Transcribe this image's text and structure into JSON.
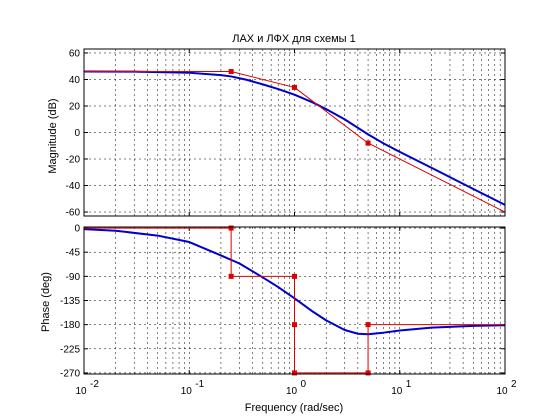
{
  "chart_data": {
    "type": "line",
    "title": "ЛАХ и ЛФХ для схемы 1",
    "xlabel": "Frequency  (rad/sec)",
    "x_scale": "log",
    "xlim": [
      0.01,
      100
    ],
    "x_ticks": [
      {
        "base": "10",
        "exp": "-2"
      },
      {
        "base": "10",
        "exp": "-1"
      },
      {
        "base": "10",
        "exp": "0"
      },
      {
        "base": "10",
        "exp": "1"
      },
      {
        "base": "10",
        "exp": "2"
      }
    ],
    "grid": true,
    "colors": {
      "exact": "#0000cc",
      "asymptotic": "#dd0000",
      "grid": "#000000",
      "axes": "#000000"
    },
    "magnitude": {
      "ylabel": "Magnitude (dB)",
      "ylim": [
        -63,
        63
      ],
      "ticks": [
        "60",
        "40",
        "20",
        "0",
        "-20",
        "-40",
        "-60"
      ],
      "series": [
        {
          "kind": "exact",
          "x": [
            0.01,
            0.03,
            0.1,
            0.2,
            0.25,
            0.35,
            0.5,
            0.7,
            1,
            1.5,
            2,
            3,
            5,
            7,
            10,
            20,
            50,
            100
          ],
          "y": [
            46,
            45.9,
            45.1,
            43.3,
            42.3,
            39.8,
            36.3,
            32.8,
            28.5,
            22.6,
            17.6,
            9.9,
            -1.4,
            -8.2,
            -14.6,
            -26.6,
            -42.6,
            -54.6
          ]
        },
        {
          "kind": "asymptotic",
          "x": [
            0.01,
            0.25,
            1,
            5,
            100
          ],
          "y": [
            46,
            46,
            34,
            -8,
            -60
          ],
          "markers": [
            {
              "x": 0.25,
              "y": 46
            },
            {
              "x": 1,
              "y": 34
            },
            {
              "x": 5,
              "y": -8
            }
          ]
        }
      ]
    },
    "phase": {
      "ylabel": "Phase (deg)",
      "ylim": [
        -272,
        2
      ],
      "ticks": [
        "0",
        "-45",
        "-90",
        "-135",
        "-180",
        "-225",
        "-270"
      ],
      "series": [
        {
          "kind": "exact",
          "x": [
            0.01,
            0.02,
            0.05,
            0.1,
            0.2,
            0.3,
            0.5,
            0.7,
            1,
            1.5,
            2,
            3,
            4,
            5,
            7,
            10,
            20,
            50,
            100
          ],
          "y": [
            -2,
            -5,
            -14,
            -26,
            -51,
            -66,
            -92,
            -110,
            -131,
            -156,
            -172,
            -190,
            -197,
            -198,
            -195,
            -191,
            -185.6,
            -182.3,
            -181.2
          ]
        },
        {
          "kind": "asymptotic",
          "x": [
            0.01,
            0.25,
            0.25,
            1,
            1,
            5,
            5,
            100
          ],
          "y": [
            0,
            0,
            -90,
            -90,
            -270,
            -270,
            -180,
            -180
          ],
          "markers": [
            {
              "x": 0.25,
              "y": 0
            },
            {
              "x": 0.25,
              "y": -90
            },
            {
              "x": 1,
              "y": -90
            },
            {
              "x": 1,
              "y": -180
            },
            {
              "x": 1,
              "y": -270
            },
            {
              "x": 5,
              "y": -270
            },
            {
              "x": 5,
              "y": -180
            }
          ]
        }
      ]
    }
  }
}
